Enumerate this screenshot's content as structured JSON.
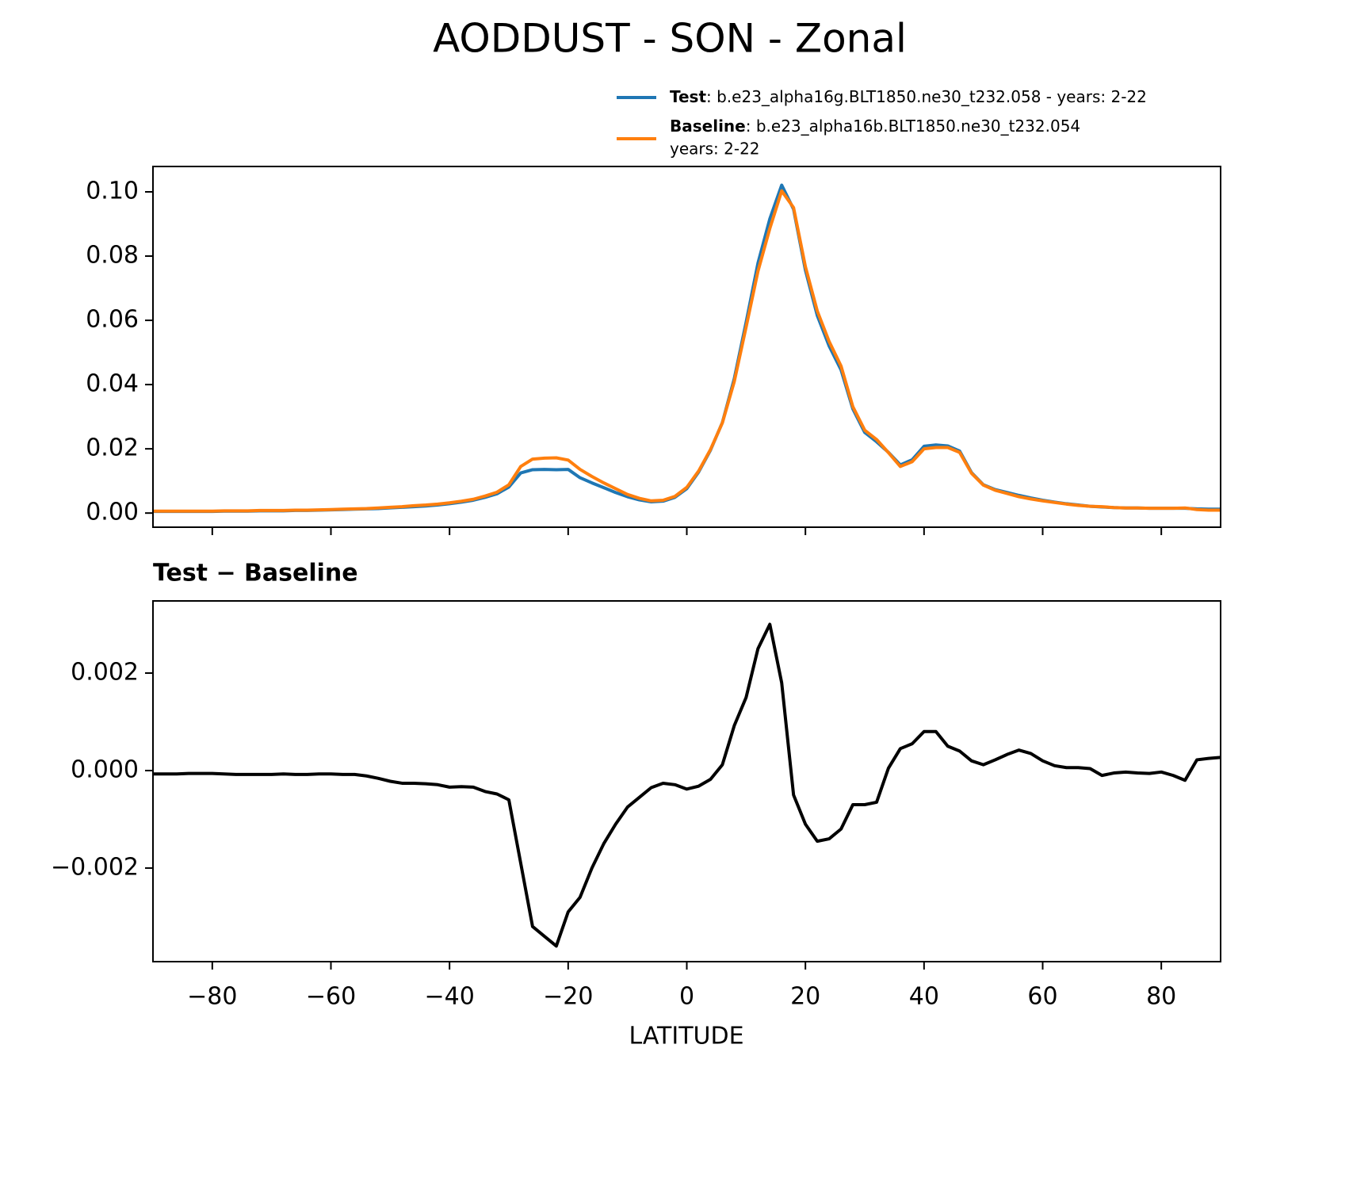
{
  "chart_data": [
    {
      "type": "line",
      "title": "AODDUST - SON - Zonal",
      "legend": "upper right",
      "x": [
        -90,
        -88,
        -86,
        -84,
        -82,
        -80,
        -78,
        -76,
        -74,
        -72,
        -70,
        -68,
        -66,
        -64,
        -62,
        -60,
        -58,
        -56,
        -54,
        -52,
        -50,
        -48,
        -46,
        -44,
        -42,
        -40,
        -38,
        -36,
        -34,
        -32,
        -30,
        -28,
        -26,
        -24,
        -22,
        -20,
        -18,
        -16,
        -14,
        -12,
        -10,
        -8,
        -6,
        -4,
        -2,
        0,
        2,
        4,
        6,
        8,
        10,
        12,
        14,
        16,
        18,
        20,
        22,
        24,
        26,
        28,
        30,
        32,
        34,
        36,
        38,
        40,
        42,
        44,
        46,
        48,
        50,
        52,
        54,
        56,
        58,
        60,
        62,
        64,
        66,
        68,
        70,
        72,
        74,
        76,
        78,
        80,
        82,
        84,
        86,
        88,
        90
      ],
      "series": [
        {
          "name": "Test",
          "description": [
            ": b.e23_alpha16g.BLT1850.ne30_t232.058 - years: 2-22"
          ],
          "color": "#1f77b4",
          "values": [
            0.0005,
            0.0005,
            0.0005,
            0.0005,
            0.0005,
            0.0005,
            0.0006,
            0.0006,
            0.0006,
            0.0007,
            0.0007,
            0.0007,
            0.0008,
            0.0008,
            0.0009,
            0.001,
            0.0011,
            0.0012,
            0.0013,
            0.0014,
            0.0016,
            0.0018,
            0.002,
            0.0022,
            0.0025,
            0.0029,
            0.0034,
            0.004,
            0.0049,
            0.006,
            0.0081,
            0.0125,
            0.0135,
            0.0136,
            0.0135,
            0.0136,
            0.011,
            0.0094,
            0.0079,
            0.0064,
            0.0051,
            0.0041,
            0.0035,
            0.0037,
            0.0049,
            0.0076,
            0.0128,
            0.0196,
            0.0282,
            0.0418,
            0.0594,
            0.0778,
            0.0916,
            0.1021,
            0.0946,
            0.0756,
            0.0615,
            0.052,
            0.0446,
            0.0324,
            0.0251,
            0.0222,
            0.0189,
            0.015,
            0.0166,
            0.0208,
            0.0212,
            0.0209,
            0.0193,
            0.0126,
            0.0088,
            0.0073,
            0.0064,
            0.0055,
            0.0047,
            0.004,
            0.0034,
            0.0029,
            0.0025,
            0.0021,
            0.0019,
            0.0017,
            0.0016,
            0.0016,
            0.0015,
            0.0015,
            0.0015,
            0.0015,
            0.0013,
            0.0012,
            0.0012
          ]
        },
        {
          "name": "Baseline",
          "description": [
            ": b.e23_alpha16b.BLT1850.ne30_t232.054",
            "years: 2-22"
          ],
          "color": "#ff7f0e",
          "values": [
            0.0006,
            0.0006,
            0.0006,
            0.0006,
            0.0006,
            0.0006,
            0.0007,
            0.0007,
            0.0007,
            0.0008,
            0.0008,
            0.0008,
            0.0009,
            0.0009,
            0.001,
            0.0011,
            0.0012,
            0.0013,
            0.0014,
            0.0016,
            0.0018,
            0.002,
            0.0023,
            0.0025,
            0.0028,
            0.0032,
            0.0037,
            0.0043,
            0.0053,
            0.0065,
            0.0088,
            0.0145,
            0.0168,
            0.0171,
            0.0172,
            0.0165,
            0.0136,
            0.0114,
            0.0094,
            0.0076,
            0.0058,
            0.0046,
            0.0038,
            0.004,
            0.0052,
            0.008,
            0.0131,
            0.0198,
            0.0281,
            0.0409,
            0.0579,
            0.0753,
            0.0886,
            0.1003,
            0.0951,
            0.0767,
            0.0629,
            0.0534,
            0.0458,
            0.0331,
            0.0258,
            0.0229,
            0.0188,
            0.0145,
            0.016,
            0.02,
            0.0204,
            0.0204,
            0.0189,
            0.0124,
            0.0087,
            0.0071,
            0.0061,
            0.0051,
            0.0044,
            0.0038,
            0.0033,
            0.0028,
            0.0024,
            0.0021,
            0.002,
            0.0017,
            0.0016,
            0.0016,
            0.0015,
            0.0015,
            0.0015,
            0.0016,
            0.0011,
            0.0009,
            0.0009
          ]
        }
      ],
      "xlim": [
        -90,
        90
      ],
      "xticks": [
        -80,
        -60,
        -40,
        -20,
        0,
        20,
        40,
        60,
        80
      ],
      "show_xtick_labels": false,
      "ylim": [
        -0.0044,
        0.1079
      ],
      "yticks": [
        {
          "value": 0,
          "label": "0.00"
        },
        0.02,
        0.04,
        0.06,
        0.08,
        {
          "value": 0.1,
          "label": "0.10"
        }
      ]
    },
    {
      "type": "line",
      "title": "Test − Baseline",
      "xlabel": "LATITUDE",
      "color": "#000000",
      "x": [
        -90,
        -88,
        -86,
        -84,
        -82,
        -80,
        -78,
        -76,
        -74,
        -72,
        -70,
        -68,
        -66,
        -64,
        -62,
        -60,
        -58,
        -56,
        -54,
        -52,
        -50,
        -48,
        -46,
        -44,
        -42,
        -40,
        -38,
        -36,
        -34,
        -32,
        -30,
        -28,
        -26,
        -24,
        -22,
        -20,
        -18,
        -16,
        -14,
        -12,
        -10,
        -8,
        -6,
        -4,
        -2,
        0,
        2,
        4,
        6,
        8,
        10,
        12,
        14,
        16,
        18,
        20,
        22,
        24,
        26,
        28,
        30,
        32,
        34,
        36,
        38,
        40,
        42,
        44,
        46,
        48,
        50,
        52,
        54,
        56,
        58,
        60,
        62,
        64,
        66,
        68,
        70,
        72,
        74,
        76,
        78,
        80,
        82,
        84,
        86,
        88,
        90
      ],
      "values": [
        -7e-05,
        -7e-05,
        -7e-05,
        -6e-05,
        -6e-05,
        -6e-05,
        -7e-05,
        -8e-05,
        -8e-05,
        -8e-05,
        -8e-05,
        -7e-05,
        -8e-05,
        -8e-05,
        -7e-05,
        -7e-05,
        -8e-05,
        -8e-05,
        -0.00011,
        -0.00016,
        -0.00022,
        -0.00026,
        -0.00026,
        -0.00027,
        -0.00029,
        -0.00034,
        -0.00033,
        -0.00034,
        -0.00043,
        -0.00048,
        -0.0006,
        -0.0019,
        -0.0032,
        -0.0034,
        -0.0036,
        -0.0029,
        -0.0026,
        -0.002,
        -0.0015,
        -0.0011,
        -0.00075,
        -0.00055,
        -0.00035,
        -0.00026,
        -0.00029,
        -0.00038,
        -0.00032,
        -0.00018,
        0.00012,
        0.00092,
        0.0015,
        0.0025,
        0.003,
        0.0018,
        -0.0005,
        -0.0011,
        -0.00145,
        -0.0014,
        -0.0012,
        -0.0007,
        -0.0007,
        -0.00065,
        5e-05,
        0.00045,
        0.00055,
        0.0008,
        0.0008,
        0.0005,
        0.0004,
        0.0002,
        0.00012,
        0.00022,
        0.00033,
        0.00042,
        0.00035,
        0.0002,
        0.0001,
        6e-05,
        6e-05,
        4e-05,
        -0.0001,
        -5e-05,
        -3e-05,
        -5e-05,
        -6e-05,
        -3e-05,
        -0.0001,
        -0.0002,
        0.00022,
        0.00025,
        0.00027
      ],
      "xlim": [
        -90,
        90
      ],
      "xticks": [
        {
          "value": -80,
          "label": "−80"
        },
        {
          "value": -60,
          "label": "−60"
        },
        {
          "value": -40,
          "label": "−40"
        },
        {
          "value": -20,
          "label": "−20"
        },
        0,
        20,
        40,
        60,
        80
      ],
      "show_xtick_labels": true,
      "ylim": [
        -0.00392,
        0.00348
      ],
      "yticks": [
        {
          "value": -0.002,
          "label": "−0.002"
        },
        {
          "value": 0,
          "label": "0.000"
        },
        0.002
      ]
    }
  ]
}
